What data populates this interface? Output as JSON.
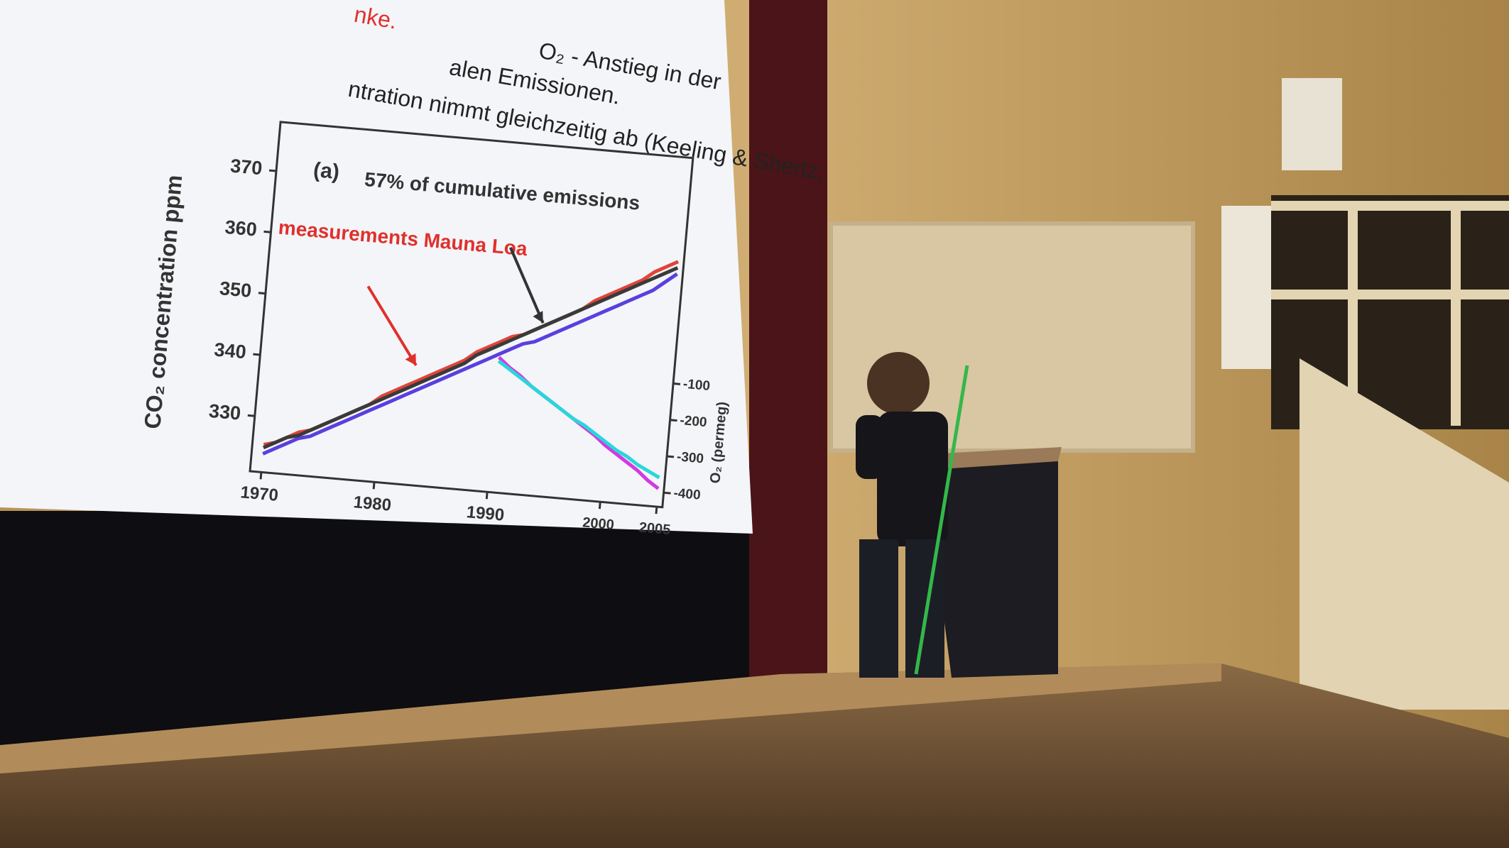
{
  "slide": {
    "lines": [
      {
        "text": "nke.",
        "color": "#e0302c"
      },
      {
        "text": "O₂ - Anstieg in der",
        "color": "#222222"
      },
      {
        "text": "alen Emissionen.",
        "color": "#222222"
      },
      {
        "text": "ntration nimmt gleichzeitig ab (Keeling & Shertz,",
        "color": "#222222"
      }
    ]
  },
  "chart_data": {
    "type": "line",
    "panel_label": "(a)",
    "annotations": [
      "57% of cumulative emissions",
      "measurements Mauna Loa"
    ],
    "y_label": "CO₂ concentration ppm",
    "y2_label": "O₂ (permeg)",
    "x": [
      1970,
      1971,
      1972,
      1973,
      1974,
      1975,
      1976,
      1977,
      1978,
      1979,
      1980,
      1981,
      1982,
      1983,
      1984,
      1985,
      1986,
      1987,
      1988,
      1989,
      1990,
      1991,
      1992,
      1993,
      1994,
      1995,
      1996,
      1997,
      1998,
      1999,
      2000,
      2001,
      2002,
      2003,
      2004,
      2005
    ],
    "xlim": [
      1969,
      2005.5
    ],
    "xticks": [
      1970,
      1980,
      1990,
      2000,
      2005
    ],
    "ylim": [
      321,
      378
    ],
    "yticks": [
      330,
      340,
      350,
      360,
      370
    ],
    "y2lim": [
      -440,
      520
    ],
    "y2ticks": [
      -100,
      -200,
      -300,
      -400
    ],
    "series": [
      {
        "color": "#e0443a",
        "values": [
          325.5,
          326,
          327,
          328,
          328.5,
          329.5,
          330.5,
          331.5,
          332.5,
          333.5,
          335,
          336,
          337,
          338,
          339,
          340,
          341,
          342,
          343.5,
          344.5,
          345.5,
          346.5,
          347,
          348,
          349,
          350,
          351,
          352,
          353.5,
          354.5,
          355.5,
          356.5,
          357.5,
          359,
          360,
          361
        ]
      },
      {
        "color": "#5a3fe0",
        "values": [
          324,
          325,
          326,
          327,
          327.5,
          328.5,
          329.5,
          330.5,
          331.5,
          332.5,
          333.5,
          334.5,
          335.5,
          336.5,
          337.5,
          338.5,
          339.5,
          340.5,
          341.5,
          342.5,
          343.5,
          344.5,
          345.5,
          346,
          347,
          348,
          349,
          350,
          351,
          352,
          353,
          354,
          355,
          356,
          357.5,
          359
        ]
      },
      {
        "color": "#3a3a3a",
        "values": [
          325,
          326,
          327,
          327.5,
          328.5,
          329.5,
          330.5,
          331.5,
          332.5,
          333.5,
          334.5,
          335.5,
          336.5,
          337.5,
          338.5,
          339.5,
          340.5,
          341.5,
          343,
          344,
          345,
          346,
          347,
          348,
          349,
          350,
          351,
          352,
          353,
          354,
          355,
          356,
          357,
          358,
          359,
          360
        ]
      },
      {
        "color": "#d23adf",
        "axis": "y2",
        "values": [
          null,
          null,
          null,
          null,
          null,
          null,
          null,
          null,
          null,
          null,
          null,
          null,
          null,
          null,
          null,
          null,
          null,
          null,
          null,
          null,
          -70,
          -95,
          -115,
          -140,
          -160,
          -180,
          -200,
          -220,
          -240,
          -260,
          -285,
          -305,
          -325,
          -345,
          -370,
          -390
        ]
      },
      {
        "color": "#2ad6dc",
        "axis": "y2",
        "values": [
          null,
          null,
          null,
          null,
          null,
          null,
          null,
          null,
          null,
          null,
          null,
          null,
          null,
          null,
          null,
          null,
          null,
          null,
          null,
          null,
          -80,
          -100,
          -120,
          -140,
          -160,
          -180,
          -200,
          -220,
          -235,
          -255,
          -275,
          -295,
          -310,
          -330,
          -345,
          -360
        ]
      }
    ]
  }
}
